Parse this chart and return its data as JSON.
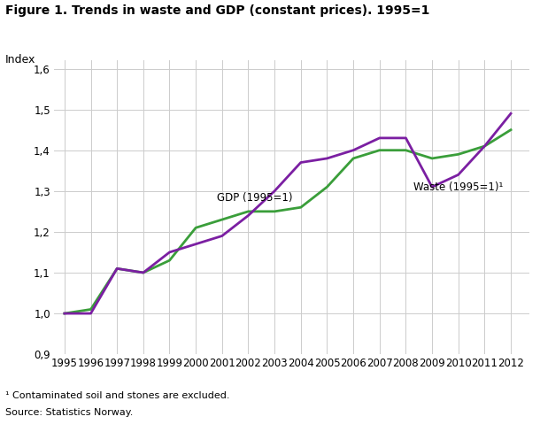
{
  "title": "Figure 1. Trends in waste and GDP (constant prices). 1995=1",
  "ylabel": "Index",
  "footnote1": "¹ Contaminated soil and stones are excluded.",
  "footnote2": "Source: Statistics Norway.",
  "years": [
    1995,
    1996,
    1997,
    1998,
    1999,
    2000,
    2001,
    2002,
    2003,
    2004,
    2005,
    2006,
    2007,
    2008,
    2009,
    2010,
    2011,
    2012
  ],
  "gdp": [
    1.0,
    1.01,
    1.11,
    1.1,
    1.13,
    1.21,
    1.23,
    1.25,
    1.25,
    1.26,
    1.31,
    1.38,
    1.4,
    1.4,
    1.38,
    1.39,
    1.41,
    1.45
  ],
  "waste": [
    1.0,
    1.0,
    1.11,
    1.1,
    1.15,
    1.17,
    1.19,
    1.24,
    1.3,
    1.37,
    1.38,
    1.4,
    1.43,
    1.43,
    1.31,
    1.34,
    1.41,
    1.49
  ],
  "gdp_color": "#3a9e3a",
  "waste_color": "#7B1FA2",
  "gdp_label": "GDP (1995=1)",
  "waste_label": "Waste (1995=1)¹",
  "ylim": [
    0.9,
    1.62
  ],
  "yticks": [
    0.9,
    1.0,
    1.1,
    1.2,
    1.3,
    1.4,
    1.5,
    1.6
  ],
  "line_width": 2.0,
  "bg_color": "#ffffff",
  "grid_color": "#cccccc"
}
